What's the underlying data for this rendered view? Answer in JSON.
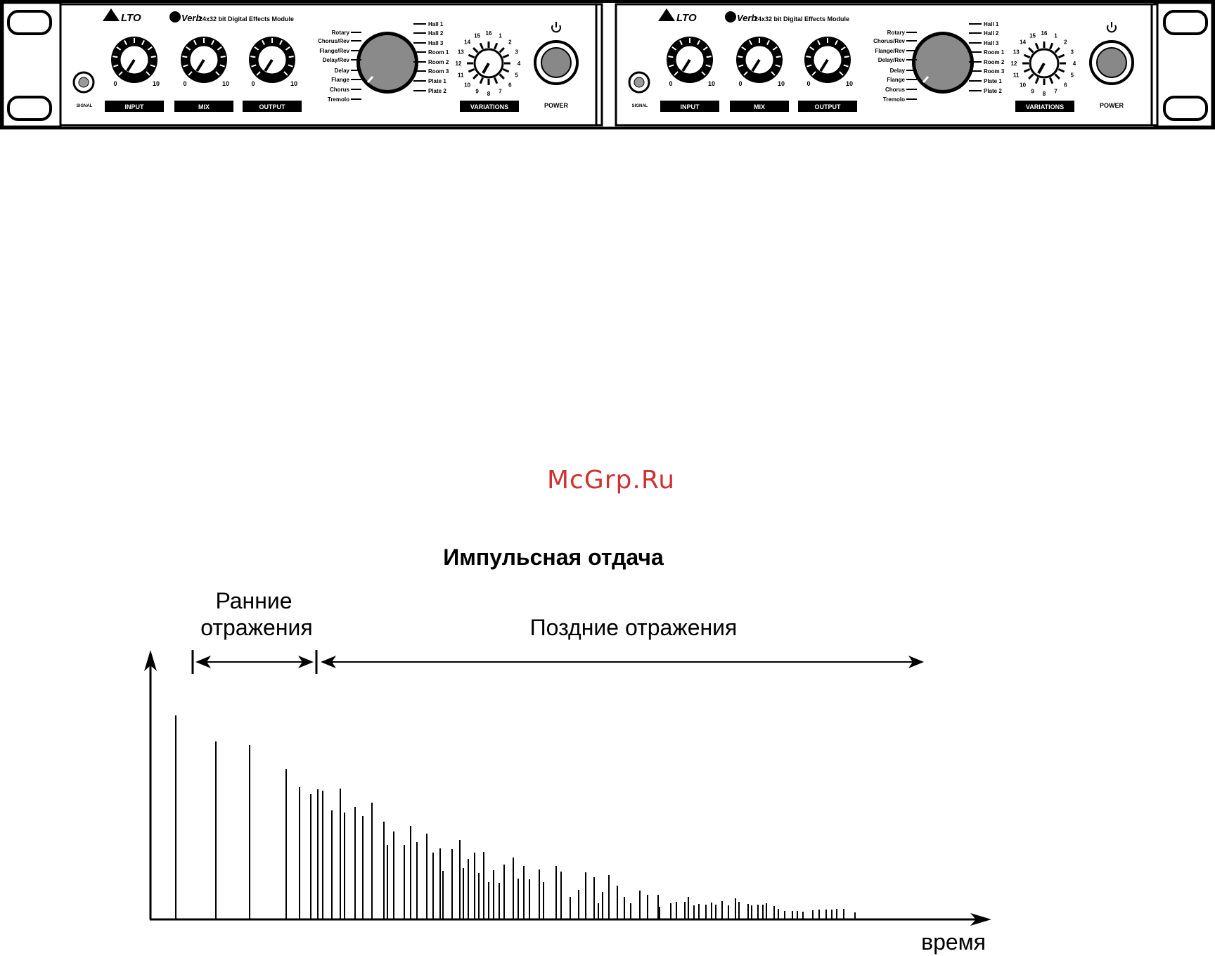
{
  "rack": {
    "brand": "LTO",
    "model": "Verb",
    "tagline": "24x32 bit Digital Effects Module",
    "knobs": [
      {
        "label": "INPUT",
        "min": "0",
        "max": "10"
      },
      {
        "label": "MIX",
        "min": "0",
        "max": "10"
      },
      {
        "label": "OUTPUT",
        "min": "0",
        "max": "10"
      }
    ],
    "signal_label": "SIGNAL",
    "effects_left": [
      "Rotary",
      "Chorus/Rev",
      "Flange/Rev",
      "Delay/Rev",
      "Delay",
      "Flange",
      "Chorus",
      "Tremolo"
    ],
    "effects_right": [
      "Hall 1",
      "Hall 2",
      "Hall 3",
      "Room 1",
      "Room 2",
      "Room 3",
      "Plate 1",
      "Plate 2"
    ],
    "variations_label": "VARIATIONS",
    "variation_numbers": [
      "16",
      "1",
      "2",
      "3",
      "4",
      "5",
      "6",
      "7",
      "8",
      "9",
      "10",
      "11",
      "12",
      "13",
      "14",
      "15"
    ],
    "power_label": "POWER",
    "power_icon": "power-icon"
  },
  "watermark": "McGrp.Ru",
  "diagram": {
    "title": "Импульсная отдача",
    "early_label_line1": "Ранние",
    "early_label_line2": "отражения",
    "late_label": "Поздние отражения",
    "x_axis_label": "время",
    "spikes": [
      {
        "t": 250,
        "h": 290
      },
      {
        "t": 307,
        "h": 253
      },
      {
        "t": 355,
        "h": 248
      },
      {
        "t": 407,
        "h": 214
      },
      {
        "t": 426,
        "h": 188
      },
      {
        "t": 442,
        "h": 178
      },
      {
        "t": 452,
        "h": 185
      },
      {
        "t": 459,
        "h": 183
      },
      {
        "t": 472,
        "h": 155
      },
      {
        "t": 484,
        "h": 186
      },
      {
        "t": 490,
        "h": 152
      },
      {
        "t": 505,
        "h": 160
      },
      {
        "t": 516,
        "h": 147
      },
      {
        "t": 529,
        "h": 166
      },
      {
        "t": 546,
        "h": 139
      },
      {
        "t": 551,
        "h": 106
      },
      {
        "t": 560,
        "h": 125
      },
      {
        "t": 575,
        "h": 106
      },
      {
        "t": 584,
        "h": 133
      },
      {
        "t": 593,
        "h": 110
      },
      {
        "t": 607,
        "h": 122
      },
      {
        "t": 616,
        "h": 95
      },
      {
        "t": 626,
        "h": 101
      },
      {
        "t": 630,
        "h": 69
      },
      {
        "t": 643,
        "h": 100
      },
      {
        "t": 654,
        "h": 113
      },
      {
        "t": 659,
        "h": 73
      },
      {
        "t": 666,
        "h": 86
      },
      {
        "t": 675,
        "h": 95
      },
      {
        "t": 681,
        "h": 66
      },
      {
        "t": 688,
        "h": 96
      },
      {
        "t": 695,
        "h": 53
      },
      {
        "t": 702,
        "h": 70
      },
      {
        "t": 710,
        "h": 52
      },
      {
        "t": 717,
        "h": 78
      },
      {
        "t": 730,
        "h": 88
      },
      {
        "t": 737,
        "h": 58
      },
      {
        "t": 745,
        "h": 76
      },
      {
        "t": 753,
        "h": 57
      },
      {
        "t": 767,
        "h": 71
      },
      {
        "t": 773,
        "h": 53
      },
      {
        "t": 791,
        "h": 76
      },
      {
        "t": 798,
        "h": 68
      },
      {
        "t": 811,
        "h": 32
      },
      {
        "t": 823,
        "h": 42
      },
      {
        "t": 833,
        "h": 67
      },
      {
        "t": 845,
        "h": 60
      },
      {
        "t": 851,
        "h": 23
      },
      {
        "t": 857,
        "h": 39
      },
      {
        "t": 866,
        "h": 63
      },
      {
        "t": 878,
        "h": 48
      },
      {
        "t": 888,
        "h": 32
      },
      {
        "t": 897,
        "h": 23
      },
      {
        "t": 910,
        "h": 41
      },
      {
        "t": 921,
        "h": 35
      },
      {
        "t": 936,
        "h": 35
      },
      {
        "t": 938,
        "h": 18
      },
      {
        "t": 954,
        "h": 23
      },
      {
        "t": 962,
        "h": 25
      },
      {
        "t": 974,
        "h": 25
      },
      {
        "t": 979,
        "h": 32
      },
      {
        "t": 987,
        "h": 20
      },
      {
        "t": 994,
        "h": 22
      },
      {
        "t": 1004,
        "h": 21
      },
      {
        "t": 1012,
        "h": 24
      },
      {
        "t": 1018,
        "h": 21
      },
      {
        "t": 1027,
        "h": 26
      },
      {
        "t": 1036,
        "h": 20
      },
      {
        "t": 1046,
        "h": 30
      },
      {
        "t": 1051,
        "h": 25
      },
      {
        "t": 1064,
        "h": 22
      },
      {
        "t": 1069,
        "h": 20
      },
      {
        "t": 1078,
        "h": 21
      },
      {
        "t": 1085,
        "h": 21
      },
      {
        "t": 1090,
        "h": 23
      },
      {
        "t": 1101,
        "h": 19
      },
      {
        "t": 1107,
        "h": 15
      },
      {
        "t": 1116,
        "h": 12
      },
      {
        "t": 1127,
        "h": 12
      },
      {
        "t": 1134,
        "h": 12
      },
      {
        "t": 1142,
        "h": 11
      },
      {
        "t": 1156,
        "h": 13
      },
      {
        "t": 1165,
        "h": 14
      },
      {
        "t": 1175,
        "h": 14
      },
      {
        "t": 1183,
        "h": 14
      },
      {
        "t": 1190,
        "h": 15
      },
      {
        "t": 1200,
        "h": 15
      },
      {
        "t": 1216,
        "h": 10
      }
    ]
  }
}
